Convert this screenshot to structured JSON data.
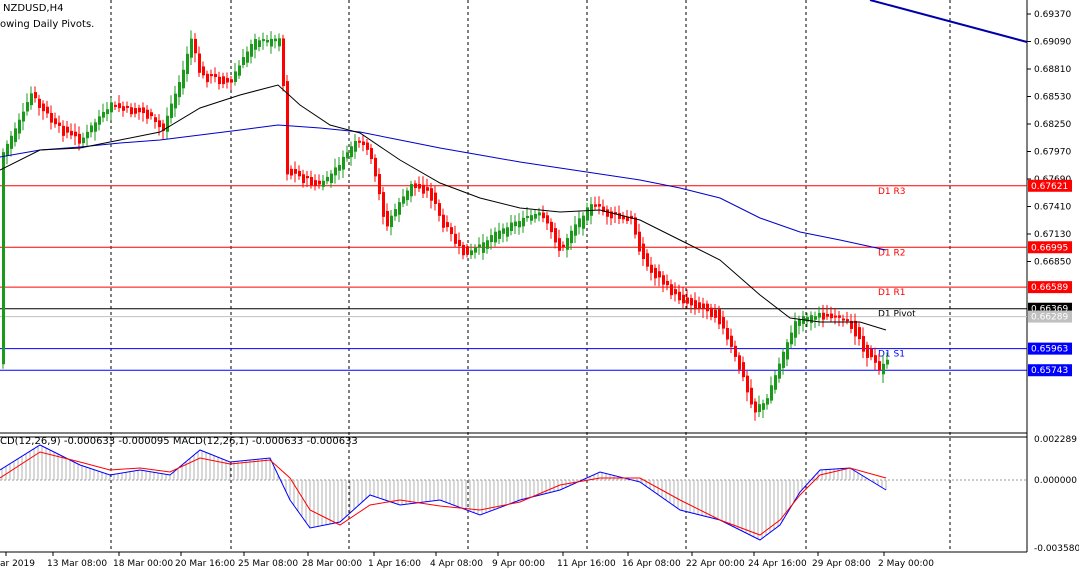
{
  "header": {
    "symbol": "NZDUSD,H4",
    "indicator": "owing Daily Pivots."
  },
  "macd_header": "CD(12,26,9) -0.000633 -0.000095 MACD(12,26,1) -0.000633 -0.000633",
  "price_axis": [
    "0.69370",
    "0.69090",
    "0.68810",
    "0.68530",
    "0.68250",
    "0.67970",
    "0.67690",
    "0.67410",
    "0.67130",
    "0.66850"
  ],
  "levels": [
    {
      "name": "D1 R3",
      "price": "0.67621",
      "color": "#ff0000"
    },
    {
      "name": "D1 R2",
      "price": "0.66995",
      "color": "#ff0000"
    },
    {
      "name": "D1 R1",
      "price": "0.66589",
      "color": "#ff0000"
    },
    {
      "name": "D1 Pivot",
      "price": "0.66369",
      "color": "#000000"
    },
    {
      "name": "",
      "price": "0.66289",
      "color": "#c0c0c0"
    },
    {
      "name": "D1 S1",
      "price": "0.65963",
      "color": "#0000ff"
    },
    {
      "name": "",
      "price": "0.65743",
      "color": "#0000ff"
    }
  ],
  "macd_axis": [
    "0.002289",
    "0.000000",
    "-0.003580"
  ],
  "time_axis": [
    "ar 2019",
    "13 Mar 08:00",
    "18 Mar 00:00",
    "20 Mar 16:00",
    "25 Mar 08:00",
    "28 Mar 00:00",
    "1 Apr 16:00",
    "4 Apr 08:00",
    "9 Apr 00:00",
    "11 Apr 16:00",
    "16 Apr 08:00",
    "22 Apr 00:00",
    "24 Apr 16:00",
    "29 Apr 08:00",
    "2 May 00:00"
  ],
  "colors": {
    "bull": "#1a9a1a",
    "bear": "#ff0000",
    "ma_fast": "#000000",
    "ma_slow": "#0000cc",
    "trendline": "#0000aa",
    "macd_main": "#0000ff",
    "macd_signal": "#ff0000",
    "hist": "#b0b0b0"
  }
}
